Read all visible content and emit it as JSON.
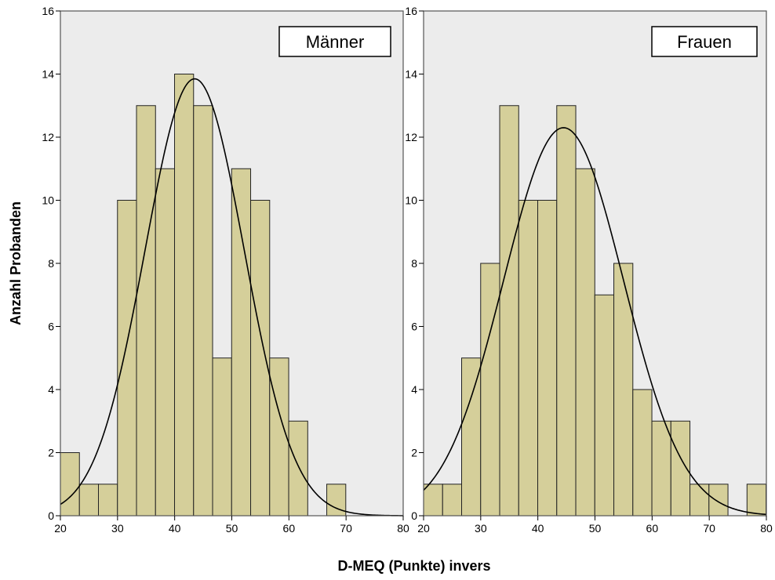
{
  "figure": {
    "xlabel": "D-MEQ (Punkte) invers",
    "ylabel": "Anzahl Probanden"
  },
  "colors": {
    "bar_fill": "#d5cf9a",
    "bar_stroke": "#222222",
    "plot_background": "#ececec",
    "curve": "#000000"
  },
  "chart_data": [
    {
      "type": "bar",
      "subtype": "histogram",
      "panel_label": "Männer",
      "xlim": [
        20,
        80
      ],
      "ylim": [
        0,
        16
      ],
      "x_ticks": [
        "20",
        "30",
        "40",
        "50",
        "60",
        "70",
        "80"
      ],
      "y_ticks": [
        "0",
        "2",
        "4",
        "6",
        "8",
        "10",
        "12",
        "14",
        "16"
      ],
      "bin_start": 20,
      "bin_width": 3.33,
      "values": [
        2,
        1,
        1,
        10,
        13,
        11,
        14,
        13,
        5,
        11,
        10,
        5,
        3,
        0,
        1,
        0,
        0,
        0
      ],
      "normal_curve": {
        "mean": 43.5,
        "sd": 8.7,
        "peak": 13.85
      },
      "grid": false
    },
    {
      "type": "bar",
      "subtype": "histogram",
      "panel_label": "Frauen",
      "xlim": [
        20,
        80
      ],
      "ylim": [
        0,
        16
      ],
      "x_ticks": [
        "20",
        "30",
        "40",
        "50",
        "60",
        "70",
        "80"
      ],
      "y_ticks": [
        "0",
        "2",
        "4",
        "6",
        "8",
        "10",
        "12",
        "14",
        "16"
      ],
      "bin_start": 20,
      "bin_width": 3.33,
      "values": [
        1,
        1,
        5,
        8,
        13,
        10,
        10,
        13,
        11,
        7,
        8,
        4,
        3,
        3,
        1,
        1,
        0,
        1
      ],
      "normal_curve": {
        "mean": 44.5,
        "sd": 10.5,
        "peak": 12.3
      },
      "grid": false
    }
  ]
}
